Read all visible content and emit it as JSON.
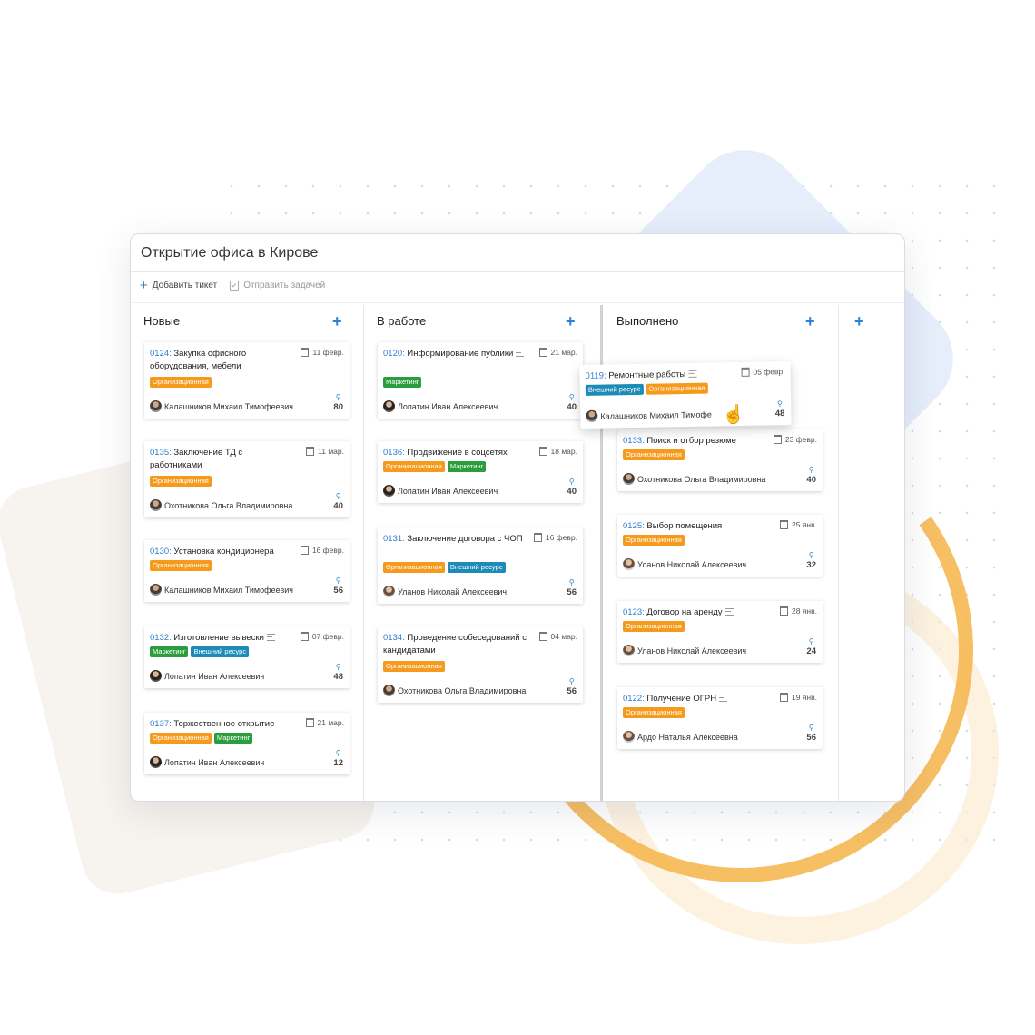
{
  "board": {
    "title": "Открытие офиса в Кирове",
    "toolbar": {
      "add_ticket": "Добавить тикет",
      "send_tasks": "Отправить задачей"
    }
  },
  "columns": [
    {
      "name": "Новые",
      "cards": [
        {
          "id": "0124:",
          "title": "Закупка офисного оборудования, мебели",
          "date": "11 февр.",
          "tags": [
            "Организационная"
          ],
          "user": "Калашников Михаил Тимофеевич",
          "points": "80"
        },
        {
          "id": "0135:",
          "title": "Заключение ТД с работниками",
          "date": "11 мар.",
          "tags": [
            "Организационная"
          ],
          "user": "Охотникова Ольга Владимировна",
          "points": "40"
        },
        {
          "id": "0130:",
          "title": "Установка кондиционера",
          "date": "16 февр.",
          "tags": [
            "Организационная"
          ],
          "user": "Калашников Михаил Тимофеевич",
          "points": "56"
        },
        {
          "id": "0132:",
          "title": "Изготовление вывески",
          "date": "07 февр.",
          "tags": [
            "Маркетинг",
            "Внешний ресурс"
          ],
          "user": "Лопатин Иван Алексеевич",
          "points": "48"
        },
        {
          "id": "0137:",
          "title": "Торжественное открытие",
          "date": "21 мар.",
          "tags": [
            "Организационная",
            "Маркетинг"
          ],
          "user": "Лопатин Иван Алексеевич",
          "points": "12"
        }
      ]
    },
    {
      "name": "В работе",
      "cards": [
        {
          "id": "0120:",
          "title": "Информирование публики",
          "date": "21 мар.",
          "tags": [
            "Маркетинг"
          ],
          "user": "Лопатин Иван Алексеевич",
          "points": "40"
        },
        {
          "id": "0136:",
          "title": "Продвижение в соцсетях",
          "date": "18 мар.",
          "tags": [
            "Организационная",
            "Маркетинг"
          ],
          "user": "Лопатин Иван Алексеевич",
          "points": "40"
        },
        {
          "id": "0131:",
          "title": "Заключение договора с ЧОП",
          "date": "16 февр.",
          "tags": [
            "Организационная",
            "Внешний ресурс"
          ],
          "user": "Уланов Николай Алексеевич",
          "points": "56"
        },
        {
          "id": "0134:",
          "title": "Проведение собеседований с кандидатами",
          "date": "04 мар.",
          "tags": [
            "Организационная"
          ],
          "user": "Охотникова Ольга Владимировна",
          "points": "56"
        }
      ]
    },
    {
      "name": "Выполнено",
      "cards": [
        {
          "id": "0133:",
          "title": "Поиск и отбор резюме",
          "date": "23 февр.",
          "tags": [
            "Организационная"
          ],
          "user": "Охотникова Ольга Владимировна",
          "points": "40"
        },
        {
          "id": "0125:",
          "title": "Выбор помещения",
          "date": "25 янв.",
          "tags": [
            "Организационная"
          ],
          "user": "Уланов Николай Алексеевич",
          "points": "32"
        },
        {
          "id": "0123:",
          "title": "Договор на аренду",
          "date": "28 янв.",
          "tags": [
            "Организационная"
          ],
          "user": "Уланов Николай Алексеевич",
          "points": "24"
        },
        {
          "id": "0122:",
          "title": "Получение ОГРН",
          "date": "19 янв.",
          "tags": [
            "Организационная"
          ],
          "user": "Ардо Наталья Алексеевна",
          "points": "56"
        }
      ]
    }
  ],
  "dragged_card": {
    "id": "0119:",
    "title": "Ремонтные работы",
    "date": "05 февр.",
    "tags": [
      "Внешний ресурс",
      "Организационная"
    ],
    "user": "Калашников Михаил Тимофе",
    "points": "48"
  },
  "colors": {
    "accent": "#2d7fd0",
    "tag_org": "#f59a1c",
    "tag_marketing": "#2a9d3c",
    "tag_external": "#1c8bb7"
  },
  "icons": {
    "add": "plus-icon",
    "date": "calendar-icon",
    "points": "points-icon",
    "cursor": "hand-cursor-icon"
  }
}
